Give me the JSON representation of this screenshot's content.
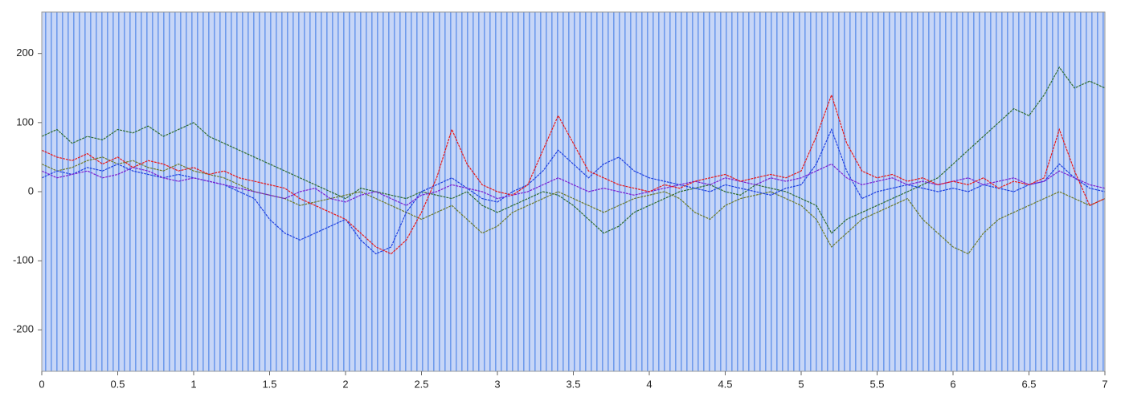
{
  "chart_data": {
    "type": "line",
    "x": [
      0,
      0.1,
      0.2,
      0.3,
      0.4,
      0.5,
      0.6,
      0.7,
      0.8,
      0.9,
      1,
      1.1,
      1.2,
      1.3,
      1.4,
      1.5,
      1.6,
      1.7,
      1.8,
      1.9,
      2,
      2.1,
      2.2,
      2.3,
      2.4,
      2.5,
      2.6,
      2.7,
      2.8,
      2.9,
      3,
      3.1,
      3.2,
      3.3,
      3.4,
      3.5,
      3.6,
      3.7,
      3.8,
      3.9,
      4,
      4.1,
      4.2,
      4.3,
      4.4,
      4.5,
      4.6,
      4.7,
      4.8,
      4.9,
      5,
      5.1,
      5.2,
      5.3,
      5.4,
      5.5,
      5.6,
      5.7,
      5.8,
      5.9,
      6,
      6.1,
      6.2,
      6.3,
      6.4,
      6.5,
      6.6,
      6.7,
      6.8,
      6.9,
      7
    ],
    "series": [
      {
        "color": "#2f6b2f",
        "values": [
          80,
          90,
          70,
          80,
          75,
          90,
          85,
          95,
          80,
          90,
          100,
          80,
          70,
          60,
          50,
          40,
          30,
          20,
          10,
          0,
          -10,
          5,
          0,
          -5,
          -10,
          0,
          -5,
          -10,
          0,
          -20,
          -30,
          -20,
          -10,
          0,
          -5,
          -20,
          -40,
          -60,
          -50,
          -30,
          -20,
          -10,
          0,
          5,
          10,
          0,
          -5,
          10,
          5,
          0,
          -10,
          -20,
          -60,
          -40,
          -30,
          -20,
          -10,
          0,
          10,
          20,
          40,
          60,
          80,
          100,
          120,
          110,
          140,
          180,
          150,
          160,
          150
        ]
      },
      {
        "color": "#6b7a2a",
        "values": [
          40,
          30,
          35,
          45,
          50,
          40,
          45,
          35,
          30,
          40,
          30,
          25,
          20,
          10,
          0,
          -5,
          -10,
          -20,
          -15,
          -10,
          -5,
          0,
          -10,
          -20,
          -30,
          -40,
          -30,
          -20,
          -40,
          -60,
          -50,
          -30,
          -20,
          -10,
          0,
          -10,
          -20,
          -30,
          -20,
          -10,
          -5,
          0,
          -10,
          -30,
          -40,
          -20,
          -10,
          -5,
          0,
          -10,
          -20,
          -40,
          -80,
          -60,
          -40,
          -30,
          -20,
          -10,
          -40,
          -60,
          -80,
          -90,
          -60,
          -40,
          -30,
          -20,
          -10,
          0,
          -10,
          -20,
          -10
        ]
      },
      {
        "color": "#1f3fe0",
        "values": [
          20,
          30,
          25,
          35,
          30,
          40,
          30,
          25,
          20,
          25,
          20,
          15,
          10,
          0,
          -10,
          -40,
          -60,
          -70,
          -60,
          -50,
          -40,
          -70,
          -90,
          -80,
          -30,
          0,
          10,
          20,
          5,
          -10,
          -15,
          0,
          10,
          30,
          60,
          40,
          20,
          40,
          50,
          30,
          20,
          15,
          10,
          5,
          0,
          10,
          5,
          0,
          -5,
          5,
          10,
          40,
          90,
          30,
          -10,
          0,
          5,
          10,
          5,
          0,
          5,
          0,
          10,
          5,
          0,
          10,
          15,
          40,
          20,
          5,
          0
        ]
      },
      {
        "color": "#7a1fd0",
        "values": [
          30,
          20,
          25,
          30,
          20,
          25,
          35,
          30,
          20,
          15,
          20,
          15,
          10,
          5,
          0,
          -5,
          -10,
          0,
          5,
          -10,
          -15,
          -5,
          0,
          -10,
          -20,
          -5,
          0,
          10,
          5,
          0,
          -10,
          -5,
          0,
          10,
          20,
          10,
          0,
          5,
          0,
          -5,
          0,
          5,
          10,
          15,
          10,
          20,
          15,
          10,
          20,
          15,
          20,
          30,
          40,
          20,
          10,
          15,
          20,
          10,
          15,
          10,
          15,
          20,
          10,
          15,
          20,
          10,
          15,
          30,
          20,
          10,
          5
        ]
      },
      {
        "color": "#e81818",
        "values": [
          60,
          50,
          45,
          55,
          40,
          50,
          35,
          45,
          40,
          30,
          35,
          25,
          30,
          20,
          15,
          10,
          5,
          -10,
          -20,
          -30,
          -40,
          -60,
          -80,
          -90,
          -70,
          -30,
          20,
          90,
          40,
          10,
          0,
          -5,
          10,
          60,
          110,
          70,
          30,
          20,
          10,
          5,
          0,
          10,
          5,
          15,
          20,
          25,
          15,
          20,
          25,
          20,
          30,
          80,
          140,
          70,
          30,
          20,
          25,
          15,
          20,
          10,
          15,
          10,
          20,
          5,
          15,
          10,
          20,
          90,
          30,
          -20,
          -10
        ]
      }
    ],
    "xlim": [
      0,
      7
    ],
    "xticks": [
      0,
      0.5,
      1,
      1.5,
      2,
      2.5,
      3,
      3.5,
      4,
      4.5,
      5,
      5.5,
      6,
      6.5,
      7
    ],
    "ylim": [
      -260,
      260
    ],
    "yticks": [
      -200,
      -100,
      0,
      100,
      200
    ]
  }
}
